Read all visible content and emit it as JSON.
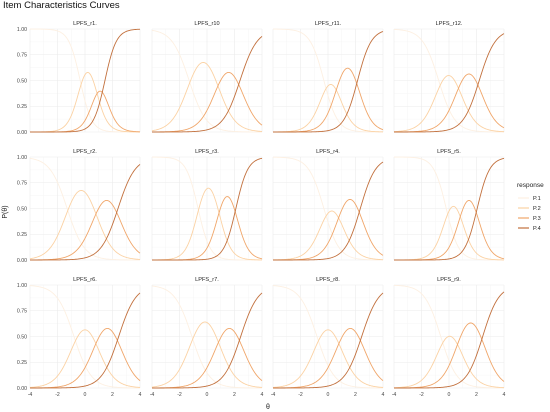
{
  "chart_data": {
    "type": "line",
    "title": "Item Characteristics Curves",
    "xlabel": "θ",
    "ylabel": "P(θ)",
    "xlim": [
      -4,
      4
    ],
    "ylim": [
      0,
      1
    ],
    "x_ticks": [
      "-4",
      "-2",
      "0",
      "2",
      "4"
    ],
    "y_ticks": [
      "0.00",
      "0.25",
      "0.50",
      "0.75",
      "1.00"
    ],
    "grid": true,
    "legend": {
      "title": "response",
      "placement": "right",
      "entries": [
        {
          "label": "P.1",
          "color": "#fdf0e2"
        },
        {
          "label": "P.2",
          "color": "#fbd2a4"
        },
        {
          "label": "P.3",
          "color": "#f0a66a"
        },
        {
          "label": "P.4",
          "color": "#c2703d"
        }
      ]
    },
    "panels": [
      {
        "item": "LPFS_r1.",
        "a": 2.4,
        "b": [
          -0.35,
          0.75,
          1.45
        ]
      },
      {
        "item": "LPFS_r10",
        "a": 1.6,
        "b": [
          -1.3,
          0.75,
          2.4
        ]
      },
      {
        "item": "LPFS_r11.",
        "a": 2.0,
        "b": [
          -0.3,
          0.7,
          2.15
        ]
      },
      {
        "item": "LPFS_r12.",
        "a": 1.7,
        "b": [
          -0.75,
          0.7,
          2.2
        ]
      },
      {
        "item": "LPFS_r2.",
        "a": 1.6,
        "b": [
          -1.3,
          0.75,
          2.4
        ]
      },
      {
        "item": "LPFS_r3.",
        "a": 2.3,
        "b": [
          -0.65,
          0.85,
          2.1
        ]
      },
      {
        "item": "LPFS_r4.",
        "a": 1.8,
        "b": [
          -0.3,
          0.85,
          2.35
        ]
      },
      {
        "item": "LPFS_r5.",
        "a": 2.2,
        "b": [
          -0.2,
          0.85,
          2.05
        ]
      },
      {
        "item": "LPFS_r6.",
        "a": 1.6,
        "b": [
          -0.8,
          0.8,
          2.45
        ]
      },
      {
        "item": "LPFS_r7.",
        "a": 1.6,
        "b": [
          -1.1,
          0.8,
          2.45
        ]
      },
      {
        "item": "LPFS_r8.",
        "a": 1.6,
        "b": [
          -0.8,
          0.8,
          2.45
        ]
      },
      {
        "item": "LPFS_r9.",
        "a": 1.7,
        "b": [
          -0.6,
          0.7,
          2.45
        ]
      }
    ]
  }
}
